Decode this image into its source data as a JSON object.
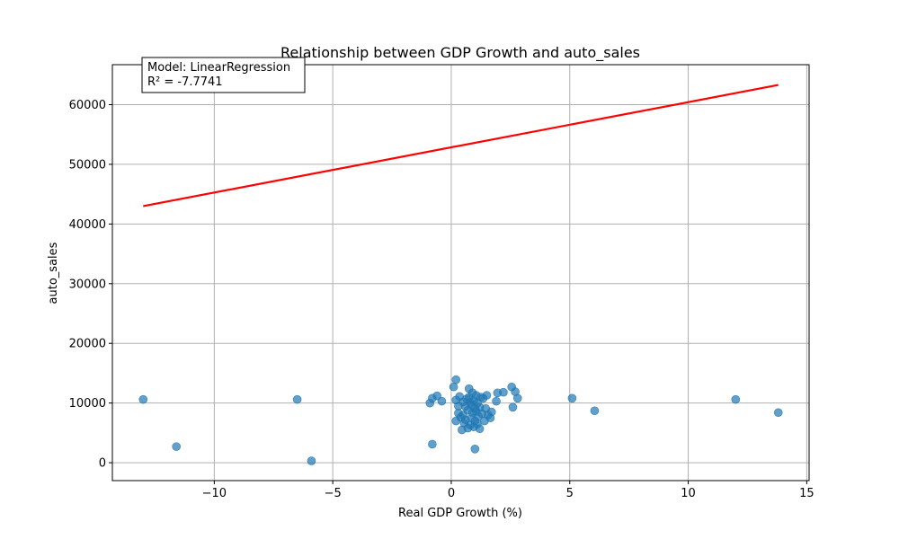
{
  "chart_data": {
    "type": "scatter",
    "title": "Relationship between GDP Growth and auto_sales",
    "xlabel": "Real GDP Growth (%)",
    "ylabel": "auto_sales",
    "xlim": [
      -14.3,
      15.1
    ],
    "ylim": [
      -3000,
      66700
    ],
    "xticks": [
      -10,
      -5,
      0,
      5,
      10,
      15
    ],
    "xtick_labels": [
      "−10",
      "−5",
      "0",
      "5",
      "10",
      "15"
    ],
    "yticks": [
      0,
      10000,
      20000,
      30000,
      40000,
      50000,
      60000
    ],
    "ytick_labels": [
      "0",
      "10000",
      "20000",
      "30000",
      "40000",
      "50000",
      "60000"
    ],
    "grid": true,
    "annotation": {
      "lines": [
        "Model: LinearRegression",
        "R² = -7.7741"
      ],
      "placement": "top-left"
    },
    "colors": {
      "points": "#1f77b4",
      "fit_line": "#ff0000",
      "grid": "#b0b0b0"
    },
    "fit_line": {
      "x": [
        -13.0,
        13.8
      ],
      "y": [
        43000,
        63300
      ]
    },
    "points": [
      [
        -13.0,
        10600
      ],
      [
        -11.6,
        2700
      ],
      [
        -6.5,
        10600
      ],
      [
        -5.9,
        300
      ],
      [
        -0.9,
        10000
      ],
      [
        -0.8,
        10800
      ],
      [
        -0.6,
        11200
      ],
      [
        -0.4,
        10300
      ],
      [
        -0.8,
        3100
      ],
      [
        0.1,
        12700
      ],
      [
        0.2,
        13900
      ],
      [
        0.2,
        10500
      ],
      [
        0.3,
        9500
      ],
      [
        0.3,
        8300
      ],
      [
        0.2,
        7000
      ],
      [
        0.35,
        11100
      ],
      [
        0.4,
        7600
      ],
      [
        0.45,
        5500
      ],
      [
        0.5,
        10200
      ],
      [
        0.5,
        8000
      ],
      [
        0.55,
        6600
      ],
      [
        0.6,
        9400
      ],
      [
        0.6,
        7200
      ],
      [
        0.65,
        10700
      ],
      [
        0.7,
        5800
      ],
      [
        0.7,
        8800
      ],
      [
        0.75,
        12400
      ],
      [
        0.75,
        11000
      ],
      [
        0.8,
        10100
      ],
      [
        0.8,
        6300
      ],
      [
        0.85,
        9700
      ],
      [
        0.85,
        7500
      ],
      [
        0.9,
        8400
      ],
      [
        0.9,
        11700
      ],
      [
        0.95,
        6000
      ],
      [
        0.95,
        10400
      ],
      [
        1.0,
        9100
      ],
      [
        1.0,
        7000
      ],
      [
        1.05,
        11300
      ],
      [
        1.05,
        8600
      ],
      [
        1.1,
        10000
      ],
      [
        1.1,
        6500
      ],
      [
        1.15,
        7800
      ],
      [
        1.2,
        9300
      ],
      [
        1.2,
        5700
      ],
      [
        1.25,
        11000
      ],
      [
        1.3,
        8200
      ],
      [
        1.35,
        10800
      ],
      [
        1.4,
        7000
      ],
      [
        1.45,
        9100
      ],
      [
        1.5,
        11300
      ],
      [
        1.55,
        8000
      ],
      [
        1.65,
        7500
      ],
      [
        1.7,
        8500
      ],
      [
        1.9,
        10300
      ],
      [
        1.95,
        11700
      ],
      [
        2.2,
        11800
      ],
      [
        2.55,
        12700
      ],
      [
        2.6,
        9300
      ],
      [
        2.7,
        11900
      ],
      [
        2.8,
        10800
      ],
      [
        1.0,
        2300
      ],
      [
        5.1,
        10800
      ],
      [
        6.05,
        8700
      ],
      [
        12.0,
        10600
      ],
      [
        13.8,
        8400
      ]
    ]
  }
}
